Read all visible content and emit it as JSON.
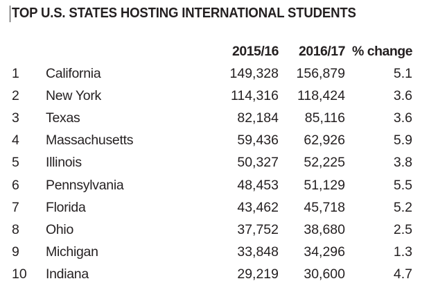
{
  "title": "TOP U.S. STATES HOSTING INTERNATIONAL STUDENTS",
  "columns": [
    "2015/16",
    "2016/17",
    "% change"
  ],
  "rows": [
    {
      "rank": "1",
      "state": "California",
      "y2015": "149,328",
      "y2016": "156,879",
      "change": "5.1"
    },
    {
      "rank": "2",
      "state": "New York",
      "y2015": "114,316",
      "y2016": "118,424",
      "change": "3.6"
    },
    {
      "rank": "3",
      "state": "Texas",
      "y2015": "82,184",
      "y2016": "85,116",
      "change": "3.6"
    },
    {
      "rank": "4",
      "state": "Massachusetts",
      "y2015": "59,436",
      "y2016": "62,926",
      "change": "5.9"
    },
    {
      "rank": "5",
      "state": "Illinois",
      "y2015": "50,327",
      "y2016": "52,225",
      "change": "3.8"
    },
    {
      "rank": "6",
      "state": "Pennsylvania",
      "y2015": "48,453",
      "y2016": "51,129",
      "change": "5.5"
    },
    {
      "rank": "7",
      "state": "Florida",
      "y2015": "43,462",
      "y2016": "45,718",
      "change": "5.2"
    },
    {
      "rank": "8",
      "state": "Ohio",
      "y2015": "37,752",
      "y2016": "38,680",
      "change": "2.5"
    },
    {
      "rank": "9",
      "state": "Michigan",
      "y2015": "33,848",
      "y2016": "34,296",
      "change": "1.3"
    },
    {
      "rank": "10",
      "state": "Indiana",
      "y2015": "29,219",
      "y2016": "30,600",
      "change": "4.7"
    }
  ]
}
